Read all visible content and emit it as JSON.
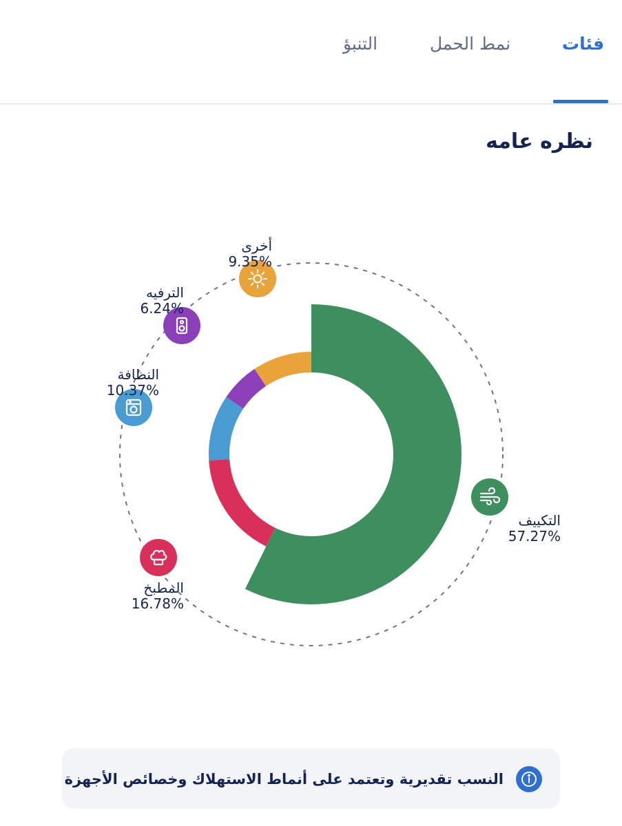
{
  "tabs": [
    {
      "label": "فئات",
      "active": true
    },
    {
      "label": "نمط الحمل",
      "active": false
    },
    {
      "label": "التنبؤ",
      "active": false
    }
  ],
  "section_title": "نظره عامه",
  "categories": [
    {
      "name": "التكييف",
      "percent": "57.27%",
      "icon": "wind-icon",
      "color": "#3f8e5e"
    },
    {
      "name": "المطبخ",
      "percent": "16.78%",
      "icon": "chef-hat-icon",
      "color": "#d8305a"
    },
    {
      "name": "النظافة",
      "percent": "10.37%",
      "icon": "washing-machine-icon",
      "color": "#4a9bd1"
    },
    {
      "name": "الترفيه",
      "percent": "6.24%",
      "icon": "speaker-icon",
      "color": "#8b3fb8"
    },
    {
      "name": "أخرى",
      "percent": "9.35%",
      "icon": "sun-icon",
      "color": "#e8a33a"
    }
  ],
  "chart_data": {
    "type": "pie",
    "categories": [
      "التكييف",
      "المطبخ",
      "النظافة",
      "الترفيه",
      "أخرى"
    ],
    "values": [
      57.27,
      16.78,
      10.37,
      6.24,
      9.35
    ],
    "colors": [
      "#3f8e5e",
      "#d8305a",
      "#4a9bd1",
      "#8b3fb8",
      "#e8a33a"
    ]
  },
  "info": {
    "text": "النسب تقديرية وتعتمد على أنماط الاستهلاك وخصائص الأجهزة",
    "icon": "info-icon",
    "color": "#2f6fd0"
  }
}
